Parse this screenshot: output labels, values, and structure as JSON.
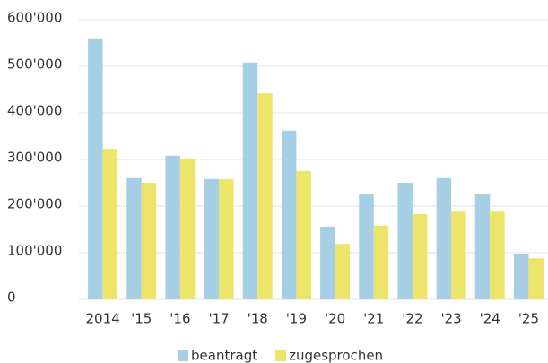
{
  "chart_data": {
    "type": "bar",
    "categories": [
      "2014",
      "'15",
      "'16",
      "'17",
      "'18",
      "'19",
      "'20",
      "'21",
      "'22",
      "'23",
      "'24",
      "'25"
    ],
    "series": [
      {
        "name": "beantragt",
        "color": "#a6cfe6",
        "values": [
          560000,
          260000,
          308000,
          258000,
          508000,
          362000,
          156000,
          225000,
          250000,
          260000,
          225000,
          98000
        ]
      },
      {
        "name": "zugesprochen",
        "color": "#ede56a",
        "values": [
          323000,
          250000,
          302000,
          258000,
          442000,
          275000,
          119000,
          158000,
          183000,
          190000,
          190000,
          88000
        ]
      }
    ],
    "ylim": [
      0,
      600000
    ],
    "yticks": [
      0,
      {
        "value": 100000,
        "label": "100'000"
      },
      {
        "value": 200000,
        "label": "200'000"
      },
      {
        "value": 300000,
        "label": "300'000"
      },
      {
        "value": 400000,
        "label": "400'000"
      },
      {
        "value": 500000,
        "label": "500'000"
      },
      {
        "value": 600000,
        "label": "600'000"
      }
    ],
    "grid": true,
    "legend": "bottom"
  }
}
